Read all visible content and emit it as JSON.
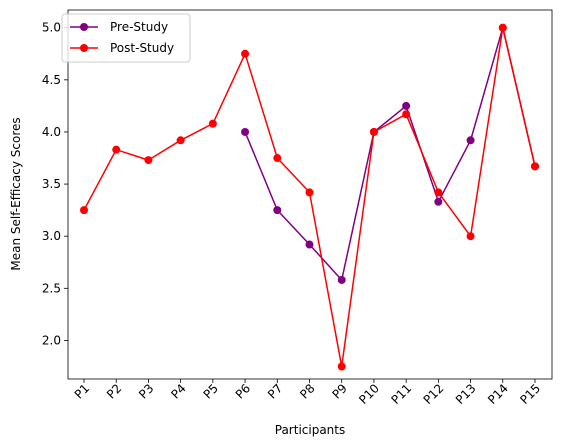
{
  "chart_data": {
    "type": "line",
    "title": "",
    "xlabel": "Participants",
    "ylabel": "Mean Self-Efficacy Scores",
    "categories": [
      "P1",
      "P2",
      "P3",
      "P4",
      "P5",
      "P6",
      "P7",
      "P8",
      "P9",
      "P10",
      "P11",
      "P12",
      "P13",
      "P14",
      "P15"
    ],
    "yticks": [
      "2.0",
      "2.5",
      "3.0",
      "3.5",
      "4.0",
      "4.5",
      "5.0"
    ],
    "ylim": [
      1.63,
      5.17
    ],
    "grid": false,
    "legend_position": "top-left",
    "series": [
      {
        "name": "Pre-Study",
        "color": "#800080",
        "marker": "circle",
        "values": [
          null,
          null,
          null,
          null,
          null,
          4.0,
          3.25,
          2.92,
          2.58,
          4.0,
          4.25,
          3.33,
          3.92,
          5.0,
          3.67
        ]
      },
      {
        "name": "Post-Study",
        "color": "#ff0000",
        "marker": "circle",
        "values": [
          3.25,
          3.83,
          3.73,
          3.92,
          4.08,
          4.75,
          3.75,
          3.42,
          1.75,
          4.0,
          4.17,
          3.42,
          3.0,
          5.0,
          3.67
        ]
      }
    ]
  }
}
